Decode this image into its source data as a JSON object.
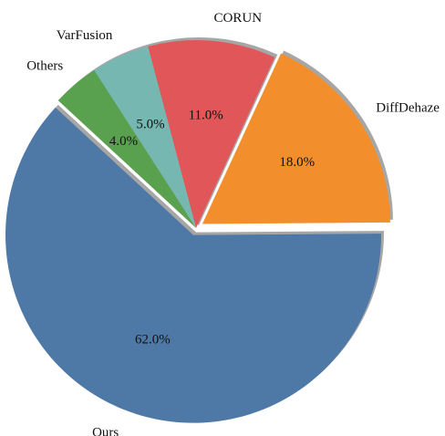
{
  "chart_data": {
    "type": "pie",
    "title": "",
    "slices": [
      {
        "label": "Ours",
        "value": 62.0,
        "pct_label": "62.0%",
        "color": "#4e79a7",
        "exploded": true
      },
      {
        "label": "DiffDehaze",
        "value": 18.0,
        "pct_label": "18.0%",
        "color": "#f28e2b",
        "exploded": true
      },
      {
        "label": "CORUN",
        "value": 11.0,
        "pct_label": "11.0%",
        "color": "#e15759",
        "exploded": false
      },
      {
        "label": "VarFusion",
        "value": 5.0,
        "pct_label": "5.0%",
        "color": "#76b7b2",
        "exploded": false
      },
      {
        "label": "Others",
        "value": 4.0,
        "pct_label": "4.0%",
        "color": "#59a14f",
        "exploded": false
      }
    ],
    "legend": "none",
    "shadow": true
  }
}
